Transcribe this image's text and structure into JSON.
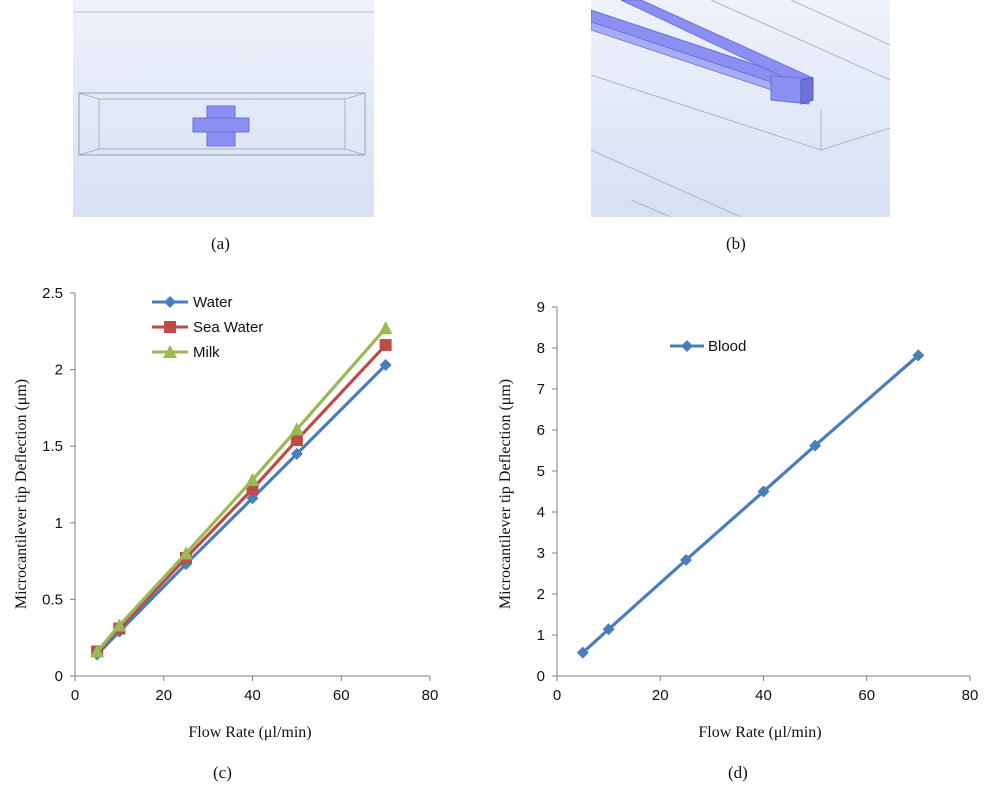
{
  "captions": {
    "a": "(a)",
    "b": "(b)",
    "c": "(c)",
    "d": "(d)"
  },
  "colors": {
    "water": "#4a7ebb",
    "sea_water": "#be4b48",
    "milk": "#98b954",
    "blood": "#4a7ebb",
    "schematic_bg": "#dde6f5",
    "channel": "#8c8ff2"
  },
  "chart_data": [
    {
      "type": "line",
      "panel": "c",
      "xlabel": "Flow Rate (μl/min)",
      "ylabel": "Microcantilever tip Deflection (μm)",
      "xlim": [
        0,
        80
      ],
      "ylim": [
        0,
        2.5
      ],
      "x_ticks": [
        "0",
        "20",
        "40",
        "60",
        "80"
      ],
      "y_ticks": [
        "0",
        "0.5",
        "1",
        "1.5",
        "2",
        "2.5"
      ],
      "grid": false,
      "legend_position": "top-left",
      "x": [
        5,
        10,
        25,
        40,
        50,
        70
      ],
      "series": [
        {
          "name": "Water",
          "marker": "diamond",
          "color": "#4a7ebb",
          "values": [
            0.14,
            0.29,
            0.73,
            1.16,
            1.45,
            2.03
          ]
        },
        {
          "name": "Sea Water",
          "marker": "square",
          "color": "#be4b48",
          "values": [
            0.16,
            0.31,
            0.77,
            1.22,
            1.54,
            2.16
          ]
        },
        {
          "name": "Milk",
          "marker": "triangle",
          "color": "#98b954",
          "values": [
            0.16,
            0.33,
            0.8,
            1.28,
            1.61,
            2.27
          ]
        }
      ]
    },
    {
      "type": "line",
      "panel": "d",
      "xlabel": "Flow Rate (μl/min)",
      "ylabel": "Microcantilever tip Deflection (μm)",
      "xlim": [
        0,
        80
      ],
      "ylim": [
        0,
        9
      ],
      "x_ticks": [
        "0",
        "20",
        "40",
        "60",
        "80"
      ],
      "y_ticks": [
        "0",
        "1",
        "2",
        "3",
        "4",
        "5",
        "6",
        "7",
        "8",
        "9"
      ],
      "grid": false,
      "legend_position": "top-left",
      "x": [
        5,
        10,
        25,
        40,
        50,
        70
      ],
      "series": [
        {
          "name": "Blood",
          "marker": "diamond",
          "color": "#4a7ebb",
          "values": [
            0.57,
            1.14,
            2.83,
            4.5,
            5.62,
            7.82
          ]
        }
      ]
    }
  ]
}
